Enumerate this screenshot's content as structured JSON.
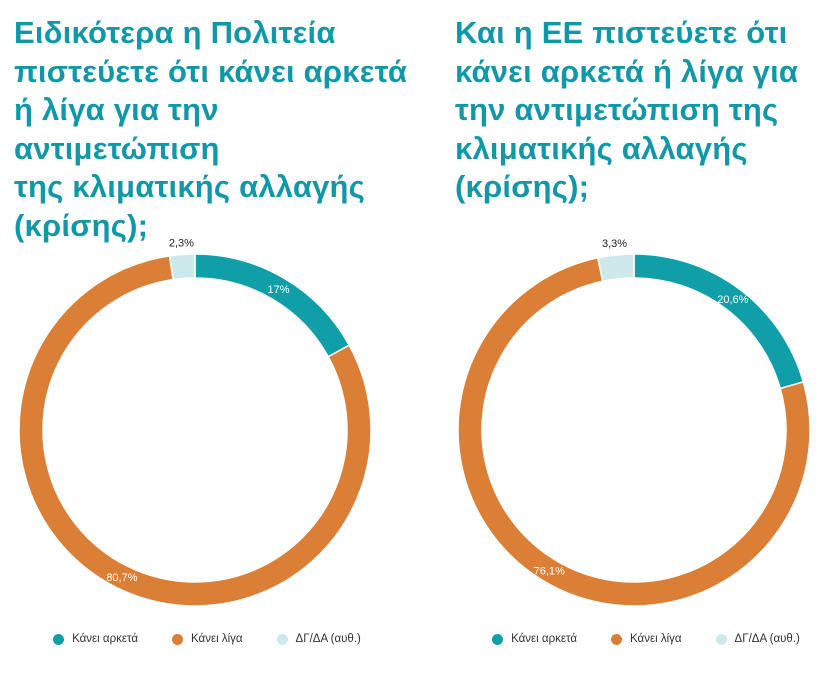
{
  "colors": {
    "title": "#1198a8",
    "kanei_arketa": "#109fa9",
    "kanei_liga": "#db7e36",
    "dg_da": "#cde9ec"
  },
  "legend": {
    "items": [
      {
        "label": "Κάνει αρκετά",
        "color_key": "kanei_arketa"
      },
      {
        "label": "Κάνει λίγα",
        "color_key": "kanei_liga"
      },
      {
        "label": "ΔΓ/ΔΑ (αυθ.)",
        "color_key": "dg_da"
      }
    ]
  },
  "chart_data": [
    {
      "type": "pie",
      "variant": "donut",
      "title": "Ειδικότερα η Πολιτεία\nπιστεύετε ότι κάνει αρκετά\nή λίγα για την αντιμετώπιση\nτης κλιματικής αλλαγής\n(κρίσης);",
      "categories": [
        "Κάνει αρκετά",
        "Κάνει λίγα",
        "ΔΓ/ΔΑ (αυθ.)"
      ],
      "values": [
        17,
        80.7,
        2.3
      ],
      "data_labels": [
        "17%",
        "80,7%",
        "2,3%"
      ],
      "legend_position": "bottom"
    },
    {
      "type": "pie",
      "variant": "donut",
      "title": "Και η ΕΕ πιστεύετε ότι\nκάνει αρκετά ή λίγα για\nτην αντιμετώπιση της\nκλιματικής αλλαγής\n(κρίσης);",
      "categories": [
        "Κάνει αρκετά",
        "Κάνει λίγα",
        "ΔΓ/ΔΑ (αυθ.)"
      ],
      "values": [
        20.6,
        76.1,
        3.3
      ],
      "data_labels": [
        "20,6%",
        "76,1%",
        "3,3%"
      ],
      "legend_position": "bottom"
    }
  ]
}
